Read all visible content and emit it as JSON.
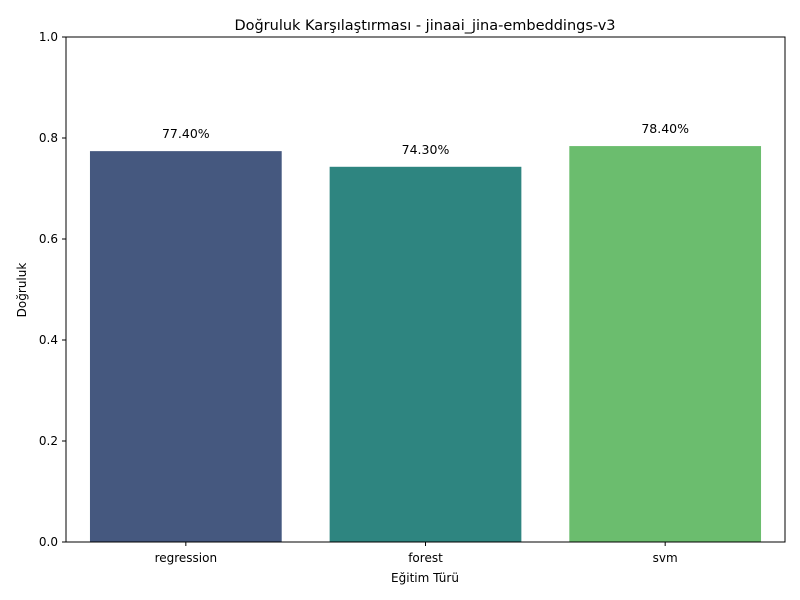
{
  "chart_data": {
    "type": "bar",
    "title": "Doğruluk Karşılaştırması - jinaai_jina-embeddings-v3",
    "xlabel": "Eğitim Türü",
    "ylabel": "Doğruluk",
    "categories": [
      "regression",
      "forest",
      "svm"
    ],
    "values": [
      0.774,
      0.743,
      0.784
    ],
    "data_labels": [
      "77.40%",
      "74.30%",
      "78.40%"
    ],
    "colors": [
      "#45587f",
      "#2e8580",
      "#6bbd6e"
    ],
    "ylim": [
      0,
      1.0
    ],
    "yticks": [
      "0.0",
      "0.2",
      "0.4",
      "0.6",
      "0.8",
      "1.0"
    ],
    "grid": false,
    "legend": "none"
  }
}
